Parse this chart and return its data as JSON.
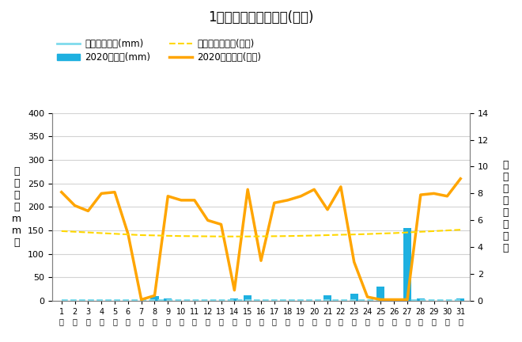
{
  "title": "1月降水量・日照時間(日別)",
  "days": [
    1,
    2,
    3,
    4,
    5,
    6,
    7,
    8,
    9,
    10,
    11,
    12,
    13,
    14,
    15,
    16,
    17,
    18,
    19,
    20,
    21,
    22,
    23,
    24,
    25,
    26,
    27,
    28,
    29,
    30,
    31
  ],
  "precip_2020": [
    0,
    0,
    0,
    0,
    0,
    0,
    0,
    10,
    5,
    0,
    0,
    0,
    0,
    5,
    12,
    0,
    0,
    0,
    0,
    0,
    12,
    0,
    15,
    0,
    30,
    5,
    155,
    5,
    0,
    0,
    5
  ],
  "precip_avg": [
    2,
    2,
    2,
    2,
    2,
    2,
    2,
    2,
    2,
    2,
    2,
    2,
    2,
    2,
    2,
    2,
    2,
    2,
    2,
    2,
    2,
    2,
    2,
    2,
    2,
    2,
    2,
    2,
    2,
    2,
    2
  ],
  "sunshine_2020": [
    8.1,
    7.1,
    6.7,
    8.0,
    8.1,
    5.0,
    0.1,
    0.4,
    7.8,
    7.5,
    7.5,
    6.0,
    5.7,
    0.8,
    8.3,
    3.0,
    7.3,
    7.5,
    7.8,
    8.3,
    6.8,
    8.5,
    2.9,
    0.3,
    0.1,
    0.1,
    0.1,
    7.9,
    8.0,
    7.8,
    9.1
  ],
  "sunshine_avg": [
    5.2,
    5.15,
    5.1,
    5.05,
    5.0,
    4.95,
    4.9,
    4.88,
    4.85,
    4.83,
    4.82,
    4.81,
    4.8,
    4.8,
    4.8,
    4.81,
    4.82,
    4.83,
    4.85,
    4.87,
    4.9,
    4.93,
    4.95,
    4.98,
    5.02,
    5.05,
    5.1,
    5.15,
    5.2,
    5.25,
    5.3
  ],
  "precip_bar_color": "#1EB0E0",
  "precip_avg_color": "#7FDBEC",
  "sunshine_2020_color": "#FFA500",
  "sunshine_avg_color": "#FFD700",
  "ylabel_left": "降\n水\n量\n（\nm\nm\n）",
  "ylabel_right": "日\n照\n時\n間\n（\n時\n間\n）",
  "ylim_left": [
    0,
    400
  ],
  "ylim_right": [
    0,
    14
  ],
  "yticks_left": [
    0,
    50,
    100,
    150,
    200,
    250,
    300,
    350,
    400
  ],
  "yticks_right": [
    0,
    2,
    4,
    6,
    8,
    10,
    12,
    14
  ],
  "legend_labels": [
    "降水量平年値(mm)",
    "2020降水量(mm)",
    "日照時間平年値(時間)",
    "2020日照時間(時間)"
  ]
}
